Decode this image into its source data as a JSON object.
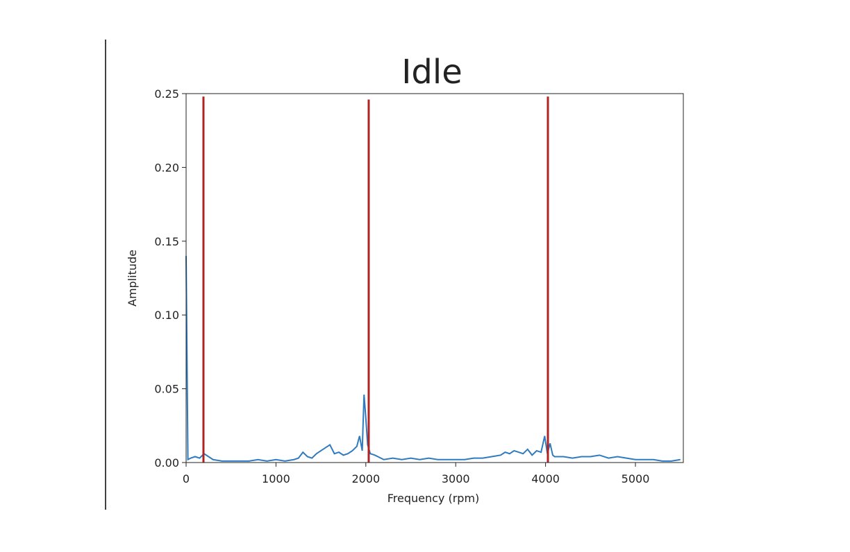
{
  "chart_data": {
    "type": "line",
    "title": "Idle",
    "x_label": "Frequency (rpm)",
    "y_label": "Amplitude",
    "x": [
      0,
      20,
      50,
      100,
      150,
      200,
      250,
      300,
      400,
      500,
      600,
      700,
      800,
      900,
      1000,
      1100,
      1200,
      1250,
      1300,
      1350,
      1400,
      1450,
      1500,
      1550,
      1600,
      1650,
      1700,
      1750,
      1800,
      1850,
      1900,
      1930,
      1960,
      1980,
      2000,
      2020,
      2050,
      2100,
      2200,
      2300,
      2400,
      2500,
      2600,
      2700,
      2800,
      2900,
      3000,
      3100,
      3200,
      3300,
      3400,
      3500,
      3550,
      3600,
      3650,
      3700,
      3750,
      3800,
      3850,
      3900,
      3950,
      3990,
      4020,
      4050,
      4080,
      4100,
      4200,
      4300,
      4400,
      4500,
      4600,
      4700,
      4800,
      4900,
      5000,
      5100,
      5200,
      5300,
      5400,
      5500
    ],
    "series": [
      {
        "color": "#2f7bbf",
        "values": [
          0.14,
          0.002,
          0.003,
          0.004,
          0.003,
          0.006,
          0.004,
          0.002,
          0.001,
          0.001,
          0.001,
          0.001,
          0.002,
          0.001,
          0.002,
          0.001,
          0.002,
          0.003,
          0.007,
          0.004,
          0.003,
          0.006,
          0.008,
          0.01,
          0.012,
          0.006,
          0.007,
          0.005,
          0.006,
          0.008,
          0.011,
          0.018,
          0.008,
          0.046,
          0.03,
          0.012,
          0.006,
          0.005,
          0.002,
          0.003,
          0.002,
          0.003,
          0.002,
          0.003,
          0.002,
          0.002,
          0.002,
          0.002,
          0.003,
          0.003,
          0.004,
          0.005,
          0.007,
          0.006,
          0.008,
          0.007,
          0.006,
          0.009,
          0.005,
          0.008,
          0.007,
          0.018,
          0.006,
          0.013,
          0.005,
          0.004,
          0.004,
          0.003,
          0.004,
          0.004,
          0.005,
          0.003,
          0.004,
          0.003,
          0.002,
          0.002,
          0.002,
          0.001,
          0.001,
          0.002
        ]
      }
    ],
    "reference_lines": {
      "color": "#b22222",
      "x": [
        193,
        2032,
        4026
      ],
      "y_top": [
        0.248,
        0.246,
        0.248
      ]
    },
    "xlim": [
      0,
      5533
    ],
    "ylim": [
      0,
      0.25
    ],
    "xticks": [
      0,
      1000,
      2000,
      3000,
      4000,
      5000
    ],
    "yticks": [
      {
        "value": 0,
        "label": "0.00"
      },
      {
        "value": 0.05,
        "label": "0.05"
      },
      {
        "value": 0.1,
        "label": "0.10"
      },
      {
        "value": 0.15,
        "label": "0.15"
      },
      {
        "value": 0.2,
        "label": "0.20"
      },
      {
        "value": 0.25,
        "label": "0.25"
      }
    ]
  }
}
